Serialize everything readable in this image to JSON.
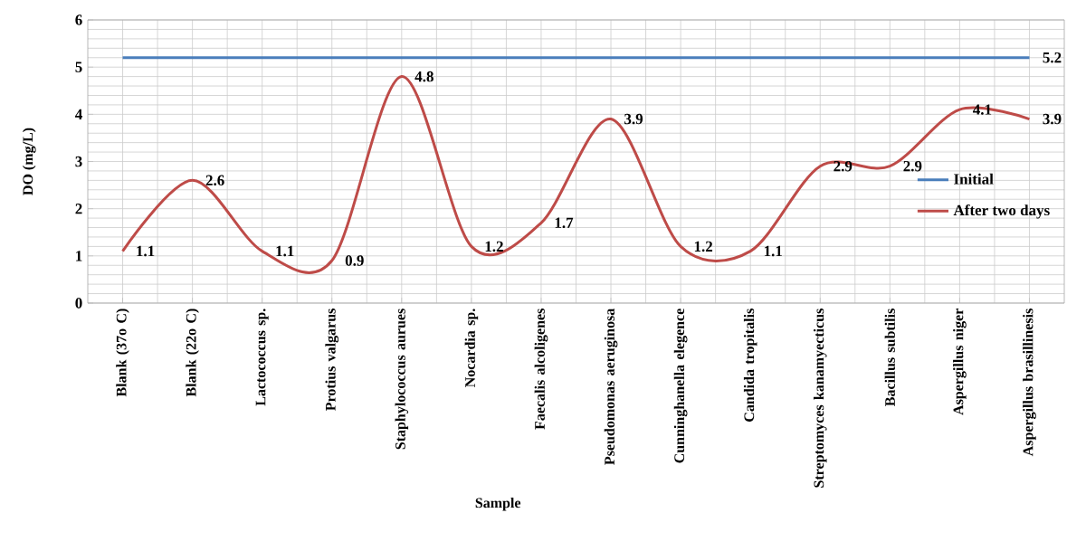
{
  "chart_data": {
    "type": "line",
    "xlabel": "Sample",
    "ylabel": "DO (mg/L)",
    "categories": [
      "Blank (37o C)",
      "Blank (22o C)",
      "Lactococcus sp.",
      "Protius valgarus",
      "Staphylococcus aurues",
      "Nocardia sp.",
      "Faecalis alcoligenes",
      "Pseudomonas aeruginosa",
      "Cunninghanella elegence",
      "Candida tropitalis",
      "Streptomyces kanamyecticus",
      "Bacillus subtilis",
      "Aspergillus niger",
      "Aspergillus brasillinesis"
    ],
    "series": [
      {
        "name": "Initial",
        "color": "#4a7ebb",
        "values": [
          5.2,
          5.2,
          5.2,
          5.2,
          5.2,
          5.2,
          5.2,
          5.2,
          5.2,
          5.2,
          5.2,
          5.2,
          5.2,
          5.2
        ],
        "value_labels": [
          null,
          null,
          null,
          null,
          null,
          null,
          null,
          null,
          null,
          null,
          null,
          null,
          null,
          "5.2"
        ]
      },
      {
        "name": "After two days",
        "color": "#be4b48",
        "values": [
          1.1,
          2.6,
          1.1,
          0.9,
          4.8,
          1.2,
          1.7,
          3.9,
          1.2,
          1.1,
          2.9,
          2.9,
          4.1,
          3.9
        ],
        "value_labels": [
          "1.1",
          "2.6",
          "1.1",
          "0.9",
          "4.8",
          "1.2",
          "1.7",
          "3.9",
          "1.2",
          "1.1",
          "2.9",
          "2.9",
          "4.1",
          "3.9"
        ]
      }
    ],
    "ylim": [
      0,
      6
    ],
    "yticks": [
      0,
      1,
      2,
      3,
      4,
      5,
      6
    ],
    "grid": true,
    "legend": "right",
    "line_style": "solid",
    "marker": "none"
  }
}
